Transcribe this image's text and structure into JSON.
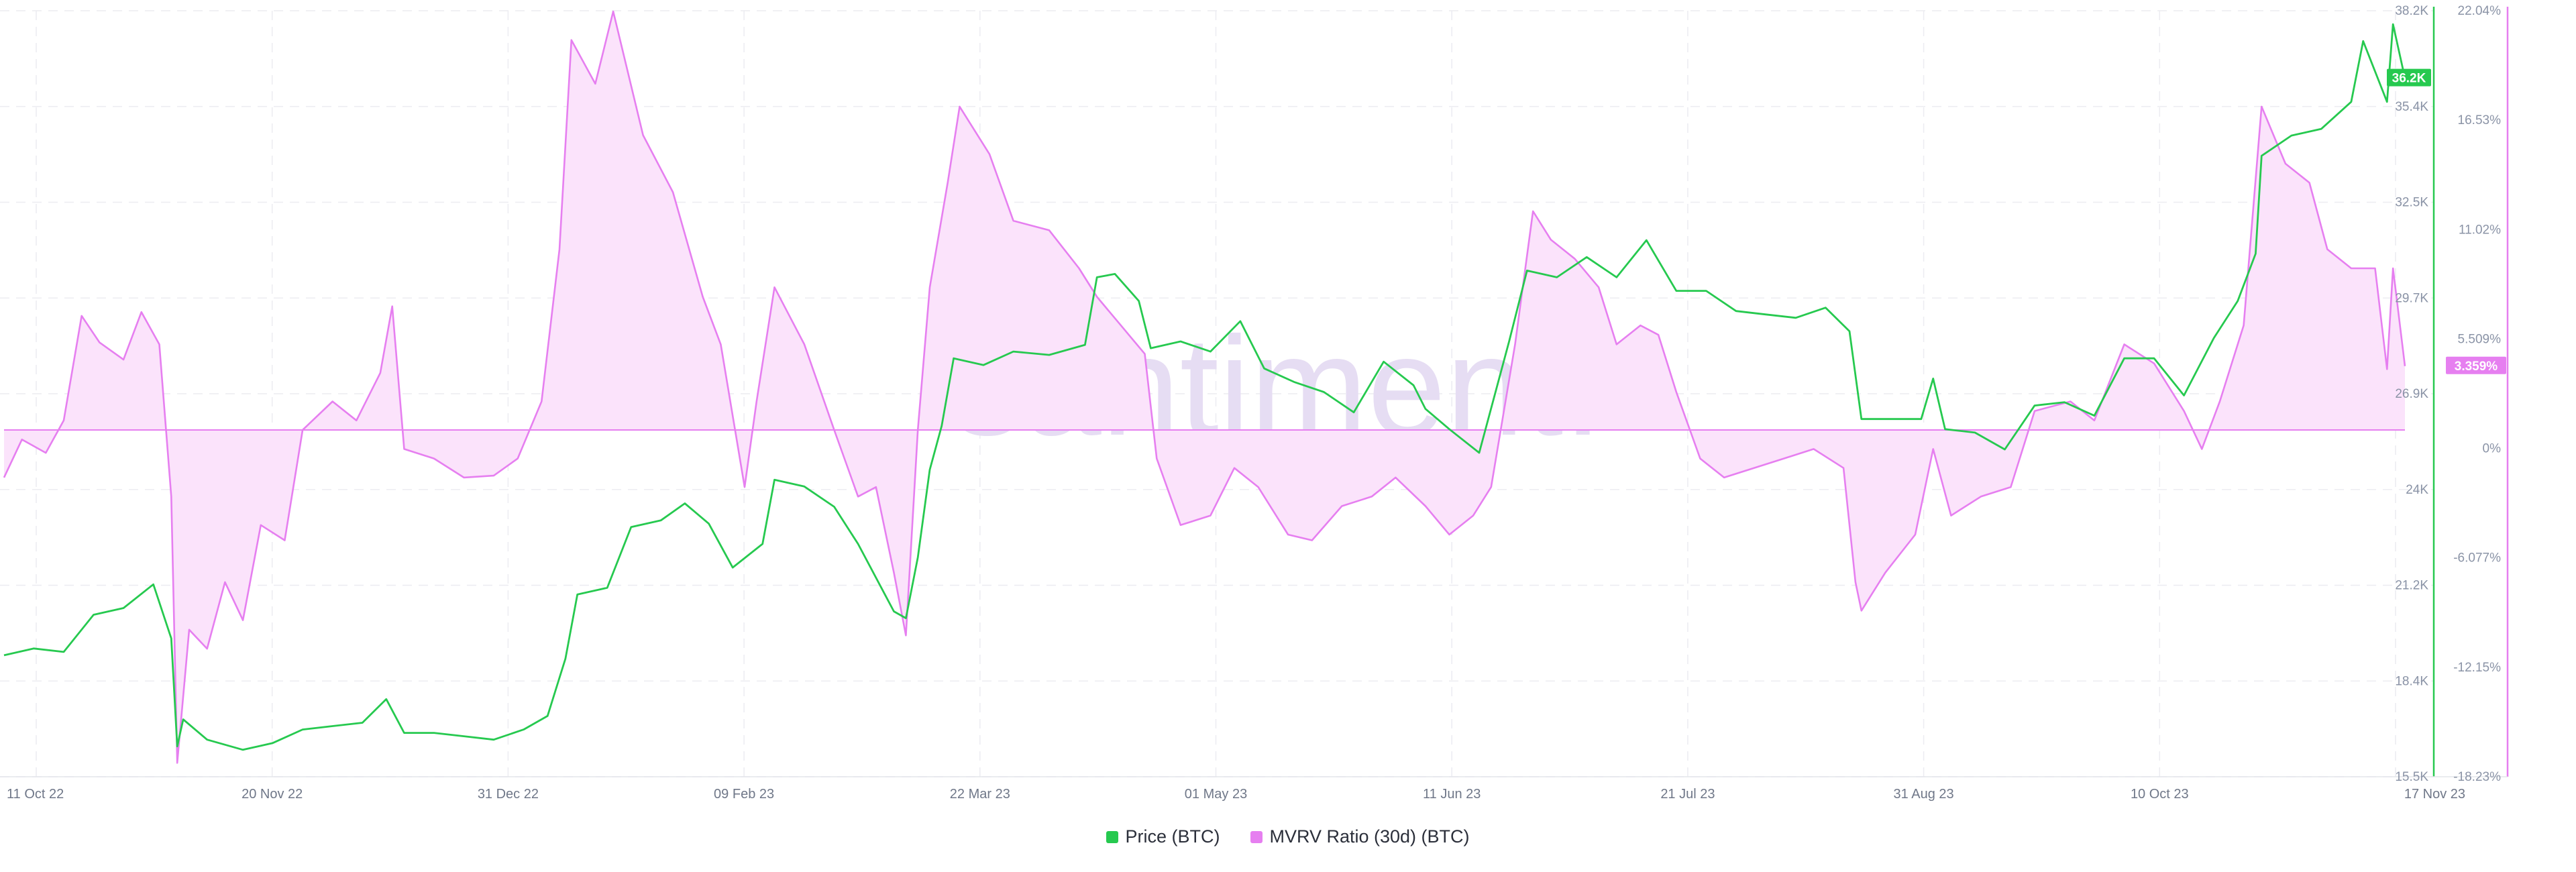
{
  "chart_data": {
    "type": "line",
    "watermark": "santiment.",
    "x_ticks": [
      "11 Oct 22",
      "20 Nov 22",
      "31 Dec 22",
      "09 Feb 23",
      "22 Mar 23",
      "01 May 23",
      "11 Jun 23",
      "21 Jul 23",
      "31 Aug 23",
      "10 Oct 23",
      "17 Nov 23"
    ],
    "x_range": [
      "2022-10-11",
      "2023-11-17"
    ],
    "y_left": {
      "ticks": [
        "38.2K",
        "35.4K",
        "32.5K",
        "29.7K",
        "26.9K",
        "24K",
        "21.2K",
        "18.4K",
        "15.5K"
      ],
      "range": [
        15500,
        38200
      ]
    },
    "y_right": {
      "ticks": [
        "22.04%",
        "16.53%",
        "11.02%",
        "5.509%",
        "0%",
        "-6.077%",
        "-12.15%",
        "-18.23%"
      ],
      "range": [
        -18.23,
        22.04
      ]
    },
    "grid": true,
    "legend_position": "bottom-center",
    "series": [
      {
        "name": "Price (BTC)",
        "color": "#26c94f",
        "axis": "left",
        "current_label": "36.2K",
        "points": [
          [
            "2022-10-11",
            19100
          ],
          [
            "2022-10-16",
            19300
          ],
          [
            "2022-10-21",
            19200
          ],
          [
            "2022-10-26",
            20300
          ],
          [
            "2022-10-31",
            20500
          ],
          [
            "2022-11-05",
            21200
          ],
          [
            "2022-11-08",
            19600
          ],
          [
            "2022-11-09",
            16400
          ],
          [
            "2022-11-10",
            17200
          ],
          [
            "2022-11-14",
            16600
          ],
          [
            "2022-11-20",
            16300
          ],
          [
            "2022-11-25",
            16500
          ],
          [
            "2022-11-30",
            16900
          ],
          [
            "2022-12-05",
            17000
          ],
          [
            "2022-12-10",
            17100
          ],
          [
            "2022-12-14",
            17800
          ],
          [
            "2022-12-17",
            16800
          ],
          [
            "2022-12-22",
            16800
          ],
          [
            "2022-12-27",
            16700
          ],
          [
            "2023-01-01",
            16600
          ],
          [
            "2023-01-06",
            16900
          ],
          [
            "2023-01-10",
            17300
          ],
          [
            "2023-01-13",
            19000
          ],
          [
            "2023-01-15",
            20900
          ],
          [
            "2023-01-20",
            21100
          ],
          [
            "2023-01-24",
            22900
          ],
          [
            "2023-01-29",
            23100
          ],
          [
            "2023-02-02",
            23600
          ],
          [
            "2023-02-06",
            23000
          ],
          [
            "2023-02-10",
            21700
          ],
          [
            "2023-02-15",
            22400
          ],
          [
            "2023-02-17",
            24300
          ],
          [
            "2023-02-22",
            24100
          ],
          [
            "2023-02-27",
            23500
          ],
          [
            "2023-03-03",
            22400
          ],
          [
            "2023-03-09",
            20400
          ],
          [
            "2023-03-11",
            20200
          ],
          [
            "2023-03-13",
            22000
          ],
          [
            "2023-03-15",
            24600
          ],
          [
            "2023-03-17",
            25900
          ],
          [
            "2023-03-19",
            27900
          ],
          [
            "2023-03-24",
            27700
          ],
          [
            "2023-03-29",
            28100
          ],
          [
            "2023-04-04",
            28000
          ],
          [
            "2023-04-10",
            28300
          ],
          [
            "2023-04-12",
            30300
          ],
          [
            "2023-04-15",
            30400
          ],
          [
            "2023-04-19",
            29600
          ],
          [
            "2023-04-21",
            28200
          ],
          [
            "2023-04-26",
            28400
          ],
          [
            "2023-05-01",
            28100
          ],
          [
            "2023-05-06",
            29000
          ],
          [
            "2023-05-10",
            27600
          ],
          [
            "2023-05-15",
            27200
          ],
          [
            "2023-05-20",
            26900
          ],
          [
            "2023-05-25",
            26300
          ],
          [
            "2023-05-30",
            27800
          ],
          [
            "2023-06-04",
            27100
          ],
          [
            "2023-06-06",
            26400
          ],
          [
            "2023-06-10",
            25800
          ],
          [
            "2023-06-15",
            25100
          ],
          [
            "2023-06-20",
            28400
          ],
          [
            "2023-06-23",
            30500
          ],
          [
            "2023-06-28",
            30300
          ],
          [
            "2023-07-03",
            30900
          ],
          [
            "2023-07-08",
            30300
          ],
          [
            "2023-07-13",
            31400
          ],
          [
            "2023-07-18",
            29900
          ],
          [
            "2023-07-23",
            29900
          ],
          [
            "2023-07-28",
            29300
          ],
          [
            "2023-08-02",
            29200
          ],
          [
            "2023-08-07",
            29100
          ],
          [
            "2023-08-12",
            29400
          ],
          [
            "2023-08-16",
            28700
          ],
          [
            "2023-08-18",
            26100
          ],
          [
            "2023-08-23",
            26100
          ],
          [
            "2023-08-28",
            26100
          ],
          [
            "2023-08-30",
            27300
          ],
          [
            "2023-09-01",
            25800
          ],
          [
            "2023-09-06",
            25700
          ],
          [
            "2023-09-11",
            25200
          ],
          [
            "2023-09-16",
            26500
          ],
          [
            "2023-09-21",
            26600
          ],
          [
            "2023-09-26",
            26200
          ],
          [
            "2023-10-01",
            27900
          ],
          [
            "2023-10-06",
            27900
          ],
          [
            "2023-10-11",
            26800
          ],
          [
            "2023-10-16",
            28500
          ],
          [
            "2023-10-20",
            29600
          ],
          [
            "2023-10-23",
            31000
          ],
          [
            "2023-10-24",
            33900
          ],
          [
            "2023-10-29",
            34500
          ],
          [
            "2023-11-03",
            34700
          ],
          [
            "2023-11-08",
            35500
          ],
          [
            "2023-11-10",
            37300
          ],
          [
            "2023-11-14",
            35500
          ],
          [
            "2023-11-15",
            37800
          ],
          [
            "2023-11-17",
            36200
          ]
        ]
      },
      {
        "name": "MVRV Ratio (30d) (BTC)",
        "color": "#e67ff0",
        "fill": "#fbe3fb",
        "axis": "right",
        "current_label": "3.359%",
        "points": [
          [
            "2022-10-11",
            -2.5
          ],
          [
            "2022-10-14",
            -0.5
          ],
          [
            "2022-10-18",
            -1.2
          ],
          [
            "2022-10-21",
            0.5
          ],
          [
            "2022-10-24",
            6.0
          ],
          [
            "2022-10-27",
            4.6
          ],
          [
            "2022-10-31",
            3.7
          ],
          [
            "2022-11-03",
            6.2
          ],
          [
            "2022-11-06",
            4.5
          ],
          [
            "2022-11-08",
            -3.5
          ],
          [
            "2022-11-09",
            -17.5
          ],
          [
            "2022-11-11",
            -10.5
          ],
          [
            "2022-11-14",
            -11.5
          ],
          [
            "2022-11-17",
            -8.0
          ],
          [
            "2022-11-20",
            -10.0
          ],
          [
            "2022-11-23",
            -5.0
          ],
          [
            "2022-11-27",
            -5.8
          ],
          [
            "2022-11-30",
            0.0
          ],
          [
            "2022-12-05",
            1.5
          ],
          [
            "2022-12-09",
            0.5
          ],
          [
            "2022-12-13",
            3.0
          ],
          [
            "2022-12-15",
            6.5
          ],
          [
            "2022-12-17",
            -1.0
          ],
          [
            "2022-12-22",
            -1.5
          ],
          [
            "2022-12-27",
            -2.5
          ],
          [
            "2023-01-01",
            -2.4
          ],
          [
            "2023-01-05",
            -1.5
          ],
          [
            "2023-01-09",
            1.5
          ],
          [
            "2023-01-12",
            9.5
          ],
          [
            "2023-01-14",
            20.5
          ],
          [
            "2023-01-18",
            18.2
          ],
          [
            "2023-01-21",
            22.0
          ],
          [
            "2023-01-26",
            15.5
          ],
          [
            "2023-01-31",
            12.5
          ],
          [
            "2023-02-05",
            7.0
          ],
          [
            "2023-02-08",
            4.5
          ],
          [
            "2023-02-12",
            -3.0
          ],
          [
            "2023-02-14",
            1.5
          ],
          [
            "2023-02-17",
            7.5
          ],
          [
            "2023-02-22",
            4.5
          ],
          [
            "2023-02-27",
            0.0
          ],
          [
            "2023-03-03",
            -3.5
          ],
          [
            "2023-03-06",
            -3.0
          ],
          [
            "2023-03-09",
            -7.5
          ],
          [
            "2023-03-11",
            -10.8
          ],
          [
            "2023-03-13",
            0.0
          ],
          [
            "2023-03-15",
            7.5
          ],
          [
            "2023-03-18",
            13.0
          ],
          [
            "2023-03-20",
            17.0
          ],
          [
            "2023-03-25",
            14.5
          ],
          [
            "2023-03-29",
            11.0
          ],
          [
            "2023-04-04",
            10.5
          ],
          [
            "2023-04-09",
            8.5
          ],
          [
            "2023-04-12",
            7.0
          ],
          [
            "2023-04-16",
            5.5
          ],
          [
            "2023-04-20",
            4.0
          ],
          [
            "2023-04-22",
            -1.5
          ],
          [
            "2023-04-26",
            -5.0
          ],
          [
            "2023-05-01",
            -4.5
          ],
          [
            "2023-05-05",
            -2.0
          ],
          [
            "2023-05-09",
            -3.0
          ],
          [
            "2023-05-14",
            -5.5
          ],
          [
            "2023-05-18",
            -5.8
          ],
          [
            "2023-05-23",
            -4.0
          ],
          [
            "2023-05-28",
            -3.5
          ],
          [
            "2023-06-01",
            -2.5
          ],
          [
            "2023-06-06",
            -4.0
          ],
          [
            "2023-06-10",
            -5.5
          ],
          [
            "2023-06-14",
            -4.5
          ],
          [
            "2023-06-17",
            -3.0
          ],
          [
            "2023-06-21",
            4.5
          ],
          [
            "2023-06-24",
            11.5
          ],
          [
            "2023-06-27",
            10.0
          ],
          [
            "2023-07-01",
            9.0
          ],
          [
            "2023-07-05",
            7.5
          ],
          [
            "2023-07-08",
            4.5
          ],
          [
            "2023-07-12",
            5.5
          ],
          [
            "2023-07-15",
            5.0
          ],
          [
            "2023-07-18",
            2.0
          ],
          [
            "2023-07-22",
            -1.5
          ],
          [
            "2023-07-26",
            -2.5
          ],
          [
            "2023-07-31",
            -2.0
          ],
          [
            "2023-08-05",
            -1.5
          ],
          [
            "2023-08-10",
            -1.0
          ],
          [
            "2023-08-15",
            -2.0
          ],
          [
            "2023-08-17",
            -8.0
          ],
          [
            "2023-08-18",
            -9.5
          ],
          [
            "2023-08-22",
            -7.5
          ],
          [
            "2023-08-27",
            -5.5
          ],
          [
            "2023-08-30",
            -1.0
          ],
          [
            "2023-09-02",
            -4.5
          ],
          [
            "2023-09-07",
            -3.5
          ],
          [
            "2023-09-12",
            -3.0
          ],
          [
            "2023-09-16",
            1.0
          ],
          [
            "2023-09-22",
            1.5
          ],
          [
            "2023-09-26",
            0.5
          ],
          [
            "2023-10-01",
            4.5
          ],
          [
            "2023-10-06",
            3.5
          ],
          [
            "2023-10-11",
            1.0
          ],
          [
            "2023-10-14",
            -1.0
          ],
          [
            "2023-10-17",
            1.5
          ],
          [
            "2023-10-21",
            5.5
          ],
          [
            "2023-10-24",
            17.0
          ],
          [
            "2023-10-28",
            14.0
          ],
          [
            "2023-11-01",
            13.0
          ],
          [
            "2023-11-04",
            9.5
          ],
          [
            "2023-11-08",
            8.5
          ],
          [
            "2023-11-12",
            8.5
          ],
          [
            "2023-11-14",
            3.2
          ],
          [
            "2023-11-15",
            8.5
          ],
          [
            "2023-11-17",
            3.359
          ]
        ]
      }
    ]
  },
  "legend": {
    "price_label": "Price (BTC)",
    "mvrv_label": "MVRV Ratio (30d) (BTC)",
    "price_color": "#26c94f",
    "mvrv_color": "#e67ff0"
  }
}
